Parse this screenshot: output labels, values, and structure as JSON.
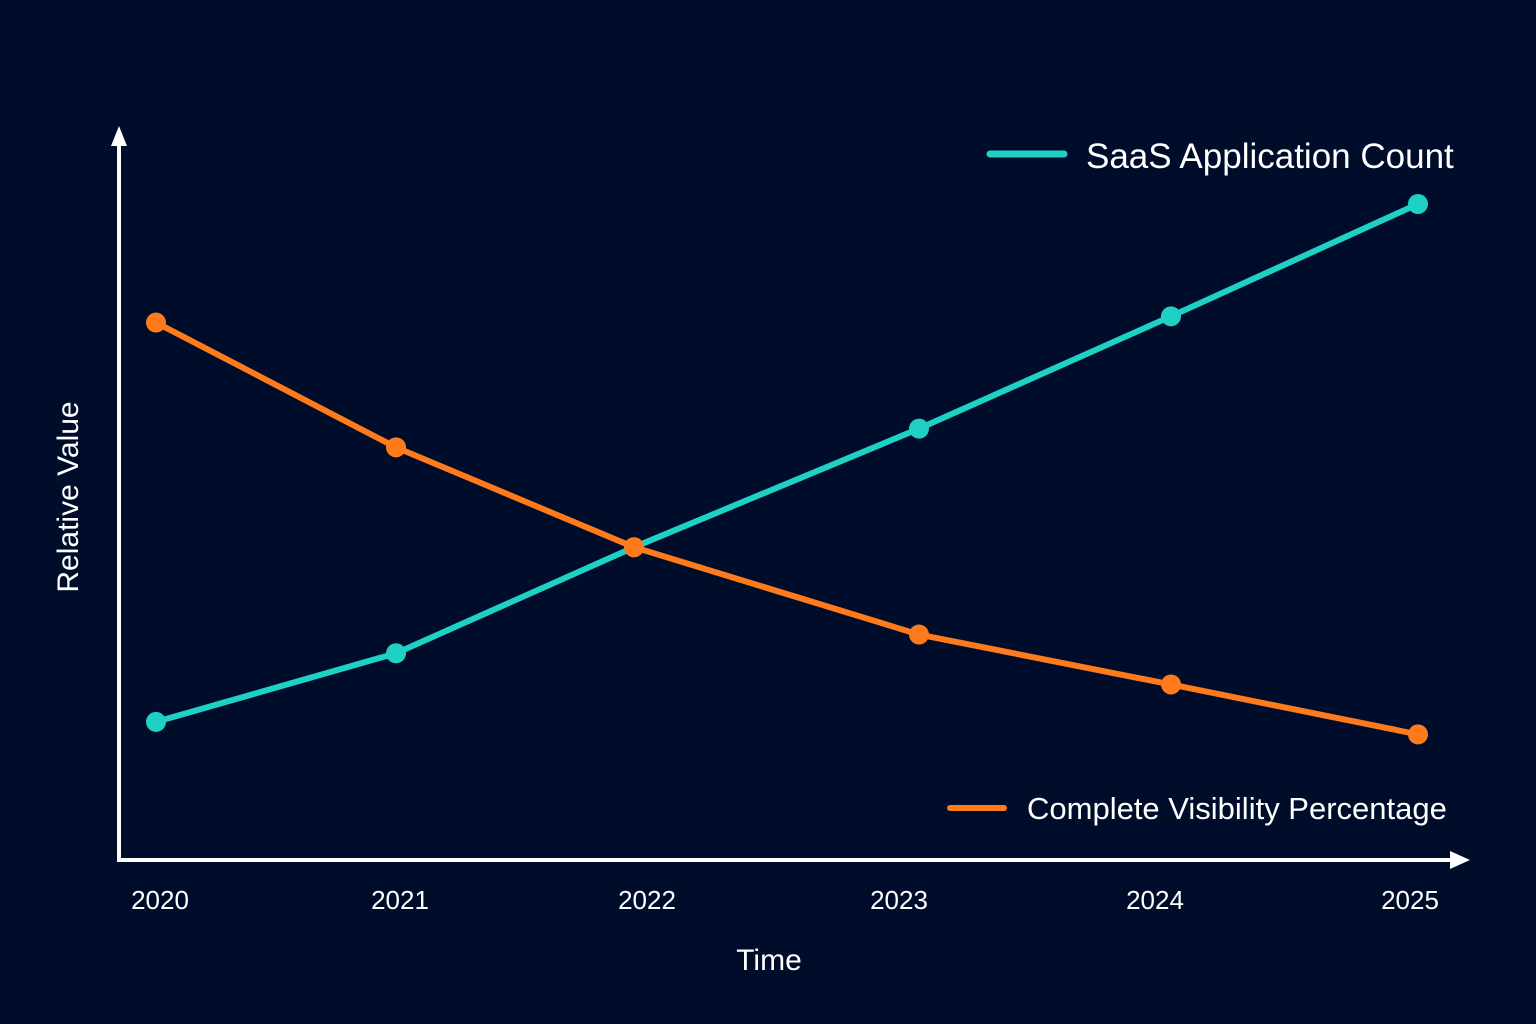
{
  "chart_data": {
    "type": "line",
    "title": "",
    "xlabel": "Time",
    "ylabel": "Relative Value",
    "x": [
      "2020",
      "2021",
      "2022",
      "2023",
      "2024",
      "2025"
    ],
    "ylim": [
      0,
      100
    ],
    "grid": false,
    "series": [
      {
        "name": "SaaS Application Count",
        "color": "#1fd1c4",
        "values": [
          17,
          28,
          45,
          64,
          82,
          100
        ]
      },
      {
        "name": "Complete Visibility Percentage",
        "color": "#ff7a1a",
        "values": [
          81,
          61,
          45,
          31,
          23,
          15
        ]
      }
    ],
    "legend": {
      "series_0_placement": "top-right",
      "series_1_placement": "bottom-right"
    }
  },
  "colors": {
    "background": "#000d2a",
    "axis": "#ffffff",
    "text": "#ffffff"
  }
}
